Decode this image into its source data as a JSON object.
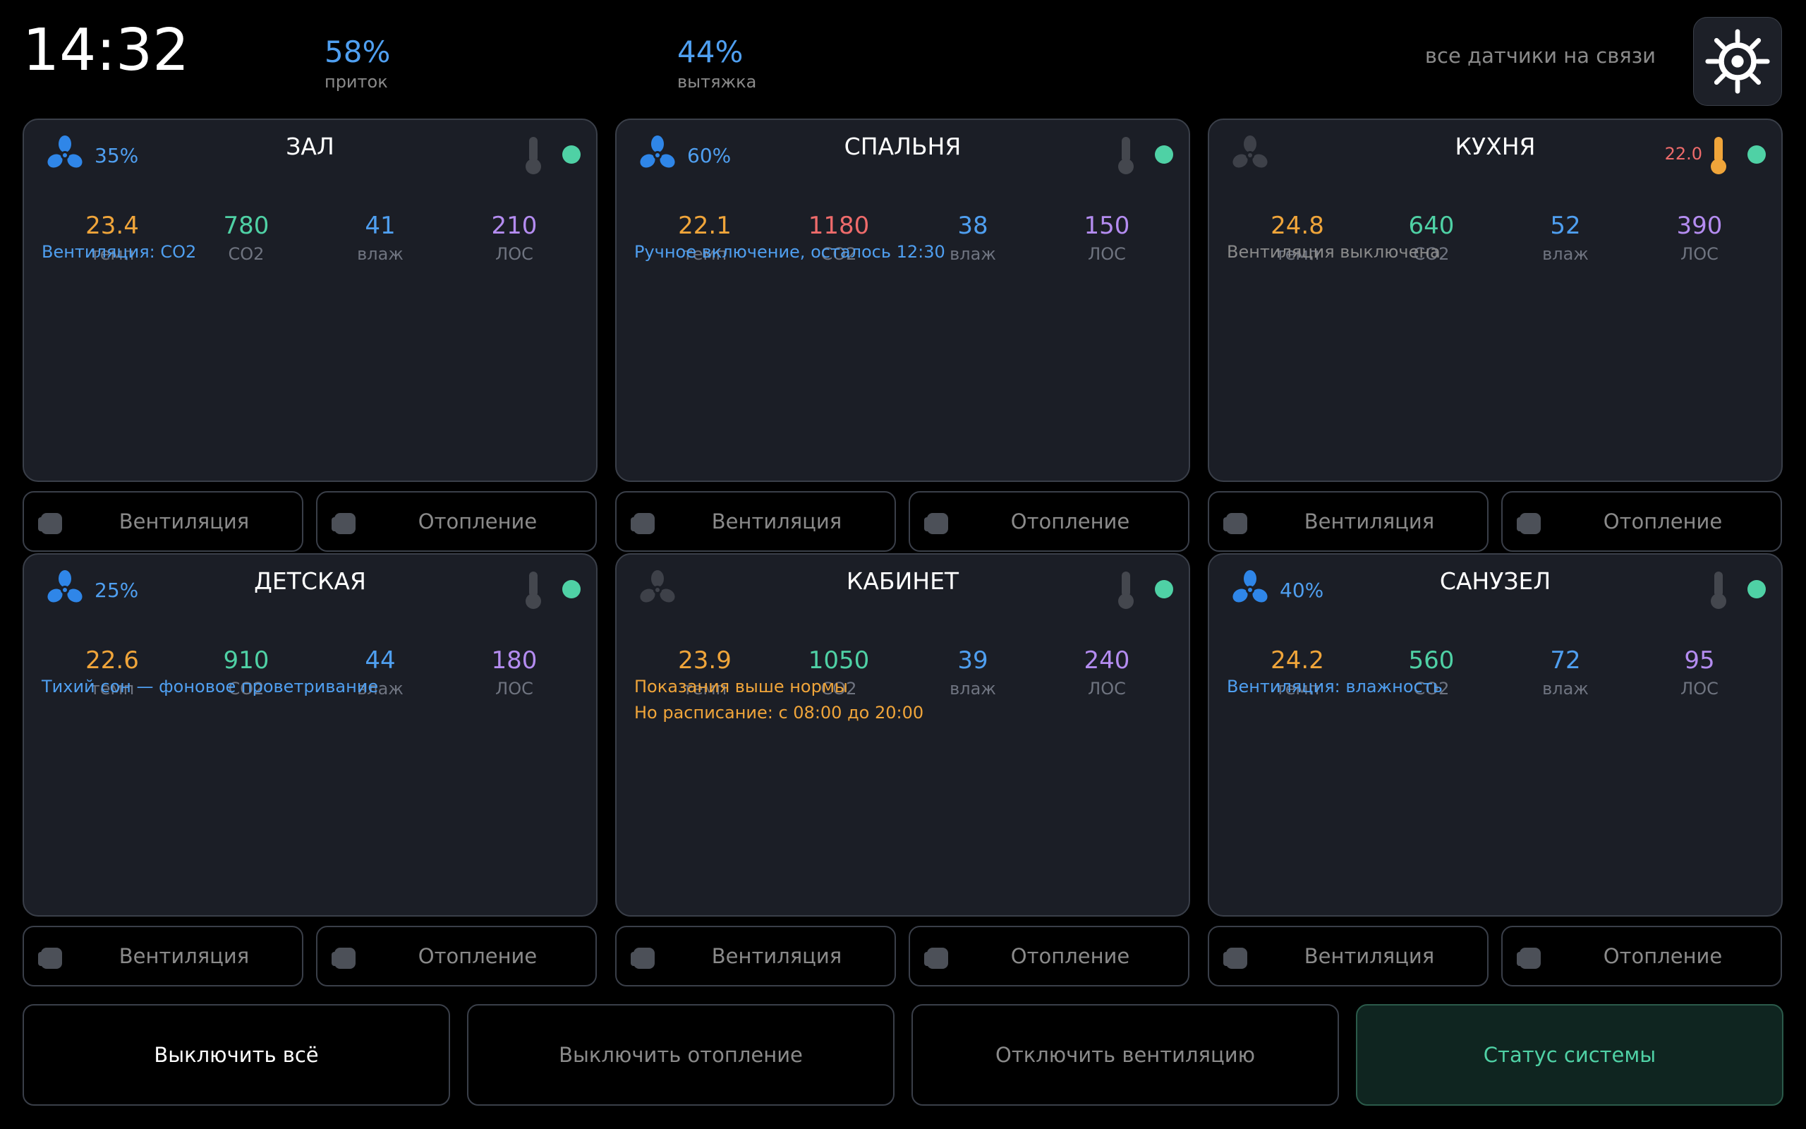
{
  "header": {
    "time": "14:32",
    "supply": {
      "value": "58%",
      "label": "приток"
    },
    "exhaust": {
      "value": "44%",
      "label": "вытяжка"
    },
    "sensors_status": "все датчики на связи",
    "settings_icon": "gear-icon"
  },
  "colors": {
    "blue": "#4f9ff0",
    "temp": "#f0a53a",
    "co2": "#4fd1a5",
    "co2_high": "#ee6b6b",
    "humidity": "#4f9ff0",
    "voc": "#b48cf0",
    "online": "#4fd1a5",
    "warning": "#f0a53a",
    "muted": "#8a8a8a"
  },
  "labels": {
    "temp": "темп",
    "co2": "CO2",
    "humidity": "влаж",
    "voc": "ЛОС",
    "vent": "Вентиляция",
    "heat": "Отопление"
  },
  "rooms": [
    {
      "name": "ЗАЛ",
      "fan_on": true,
      "fan_pct": "35%",
      "heating": false,
      "heat_setpoint": "",
      "temp": "23.4",
      "co2": "780",
      "co2_high": false,
      "humidity": "41",
      "voc": "210",
      "messages": [
        {
          "text": "Вентиляция: CO2",
          "tone": "blue"
        }
      ]
    },
    {
      "name": "СПАЛЬНЯ",
      "fan_on": true,
      "fan_pct": "60%",
      "heating": false,
      "heat_setpoint": "",
      "temp": "22.1",
      "co2": "1180",
      "co2_high": true,
      "humidity": "38",
      "voc": "150",
      "messages": [
        {
          "text": "Ручное включение, осталось 12:30",
          "tone": "blue"
        }
      ]
    },
    {
      "name": "КУХНЯ",
      "fan_on": false,
      "fan_pct": "",
      "heating": true,
      "heat_setpoint": "22.0",
      "temp": "24.8",
      "co2": "640",
      "co2_high": false,
      "humidity": "52",
      "voc": "390",
      "messages": [
        {
          "text": "Вентиляция выключена",
          "tone": "muted"
        }
      ]
    },
    {
      "name": "ДЕТСКАЯ",
      "fan_on": true,
      "fan_pct": "25%",
      "heating": false,
      "heat_setpoint": "",
      "temp": "22.6",
      "co2": "910",
      "co2_high": false,
      "humidity": "44",
      "voc": "180",
      "messages": [
        {
          "text": "Тихий сон — фоновое проветривание",
          "tone": "blue"
        }
      ]
    },
    {
      "name": "КАБИНЕТ",
      "fan_on": false,
      "fan_pct": "",
      "heating": false,
      "heat_setpoint": "",
      "temp": "23.9",
      "co2": "1050",
      "co2_high": false,
      "humidity": "39",
      "voc": "240",
      "messages": [
        {
          "text": "Показания выше нормы",
          "tone": "warning"
        },
        {
          "text": "Но расписание: с 08:00 до 20:00",
          "tone": "warning"
        }
      ]
    },
    {
      "name": "САНУЗЕЛ",
      "fan_on": true,
      "fan_pct": "40%",
      "heating": false,
      "heat_setpoint": "",
      "temp": "24.2",
      "co2": "560",
      "co2_high": false,
      "humidity": "72",
      "voc": "95",
      "messages": [
        {
          "text": "Вентиляция: влажность",
          "tone": "blue"
        }
      ]
    }
  ],
  "actions": {
    "all_off": "Выключить всё",
    "heating_off": "Выключить отопление",
    "vent_off": "Отключить вентиляцию",
    "system_status": "Статус системы"
  }
}
